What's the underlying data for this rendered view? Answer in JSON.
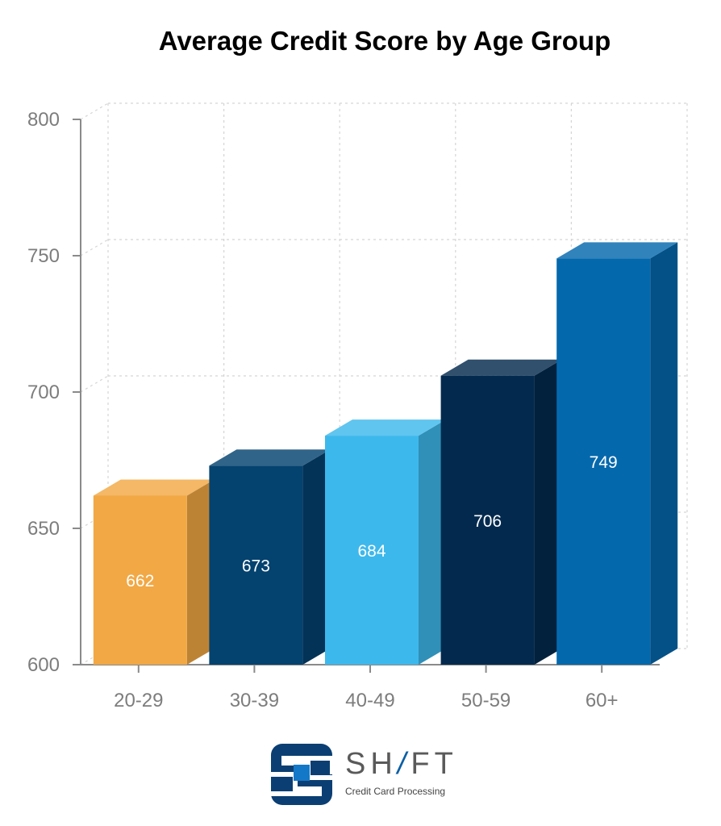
{
  "chart_data": {
    "type": "bar",
    "title": "Average Credit Score by Age Group",
    "categories": [
      "20-29",
      "30-39",
      "40-49",
      "50-59",
      "60+"
    ],
    "values": [
      662,
      673,
      684,
      706,
      749
    ],
    "colors": [
      "#f2a844",
      "#04426f",
      "#3db8ec",
      "#032a4e",
      "#0468ad"
    ],
    "ylim": [
      600,
      800
    ],
    "yticks": [
      600,
      650,
      700,
      750,
      800
    ],
    "xlabel": "",
    "ylabel": "",
    "grid": true,
    "style": "3d"
  },
  "logo": {
    "brand_prefix": "SH",
    "brand_slash": "/",
    "brand_suffix": "FT",
    "tagline": "Credit Card Processing"
  }
}
